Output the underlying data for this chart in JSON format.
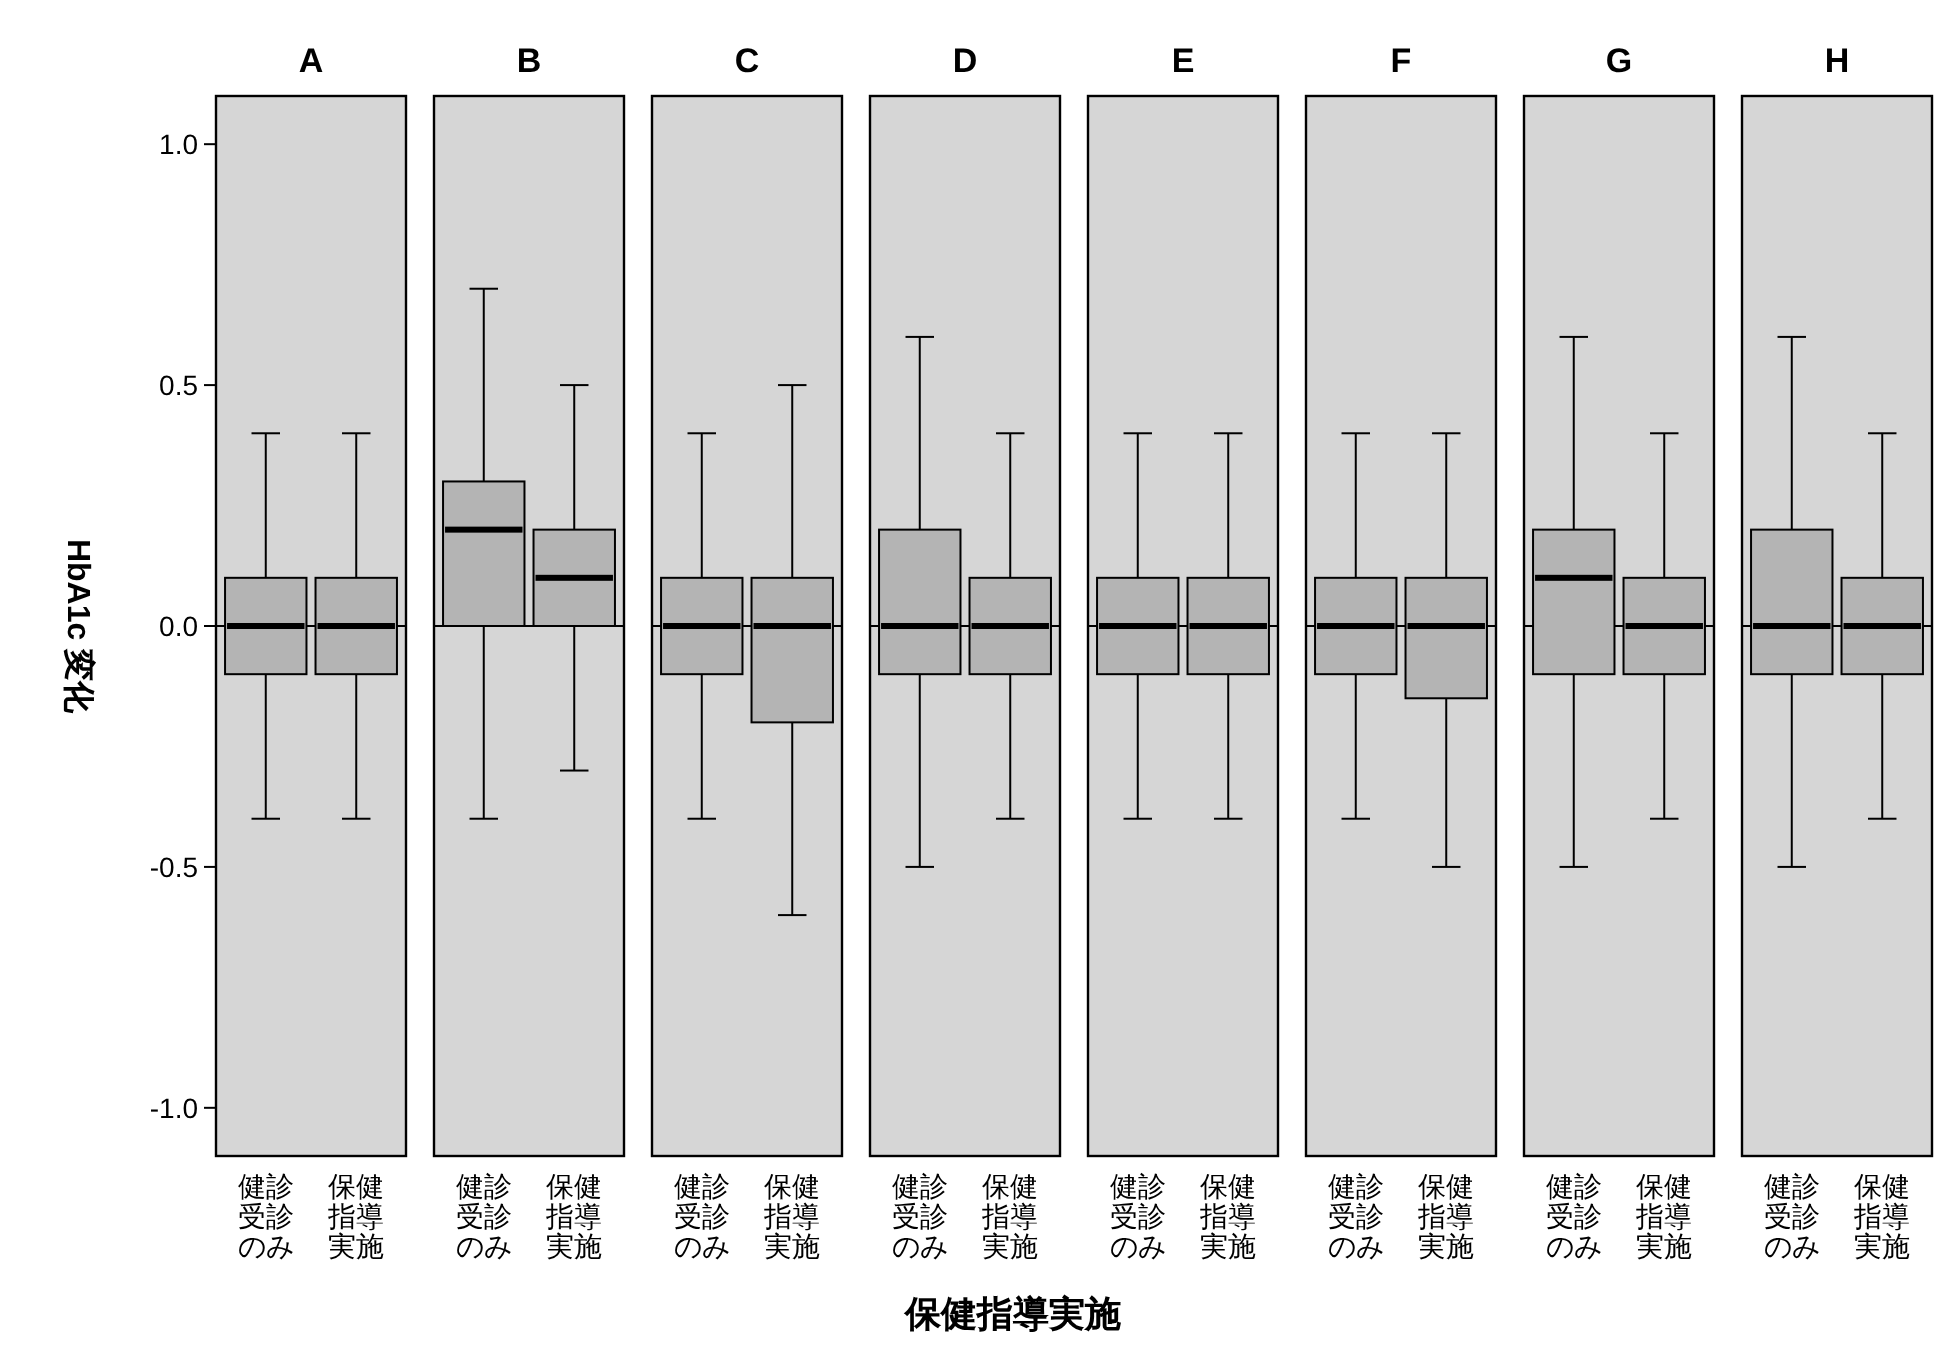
{
  "chart_data": [
    {
      "type": "box",
      "title": "A",
      "ylabel": "HbA1c 変化",
      "categories": [
        "健診受診のみ",
        "保健指導実施"
      ],
      "color": "#b4b4b4",
      "ylim": [
        -1.1,
        1.1
      ],
      "yticks": [
        {
          "value": -1,
          "label": "-1.0"
        },
        {
          "value": -0.5,
          "label": "-0.5"
        },
        {
          "value": 0,
          "label": "0.0"
        },
        {
          "value": 0.5,
          "label": "0.5"
        },
        {
          "value": 1,
          "label": "1.0"
        }
      ],
      "ref_lines": [
        {
          "axis": "y",
          "value": 0
        }
      ],
      "boxes": [
        {
          "low": -0.4,
          "q1": -0.1,
          "median": 0,
          "q3": 0.1,
          "high": 0.4
        },
        {
          "low": -0.4,
          "q1": -0.1,
          "median": 0,
          "q3": 0.1,
          "high": 0.4
        }
      ]
    },
    {
      "type": "box",
      "title": "B",
      "tick_labels": "x",
      "categories": [
        "健診受診のみ",
        "保健指導実施"
      ],
      "color": "#b4b4b4",
      "ylim": [
        -1.1,
        1.1
      ],
      "ref_lines": [
        {
          "axis": "y",
          "value": 0
        }
      ],
      "boxes": [
        {
          "low": -0.4,
          "q1": 0,
          "median": 0.2,
          "q3": 0.3,
          "high": 0.7
        },
        {
          "low": -0.3,
          "q1": 0,
          "median": 0.1,
          "q3": 0.2,
          "high": 0.5
        }
      ]
    },
    {
      "type": "box",
      "title": "C",
      "tick_labels": "x",
      "categories": [
        "健診受診のみ",
        "保健指導実施"
      ],
      "color": "#b4b4b4",
      "ylim": [
        -1.1,
        1.1
      ],
      "ref_lines": [
        {
          "axis": "y",
          "value": 0
        }
      ],
      "boxes": [
        {
          "low": -0.4,
          "q1": -0.1,
          "median": 0,
          "q3": 0.1,
          "high": 0.4
        },
        {
          "low": -0.6,
          "q1": -0.2,
          "median": 0,
          "q3": 0.1,
          "high": 0.5
        }
      ]
    },
    {
      "type": "box",
      "title": "D",
      "xlabel": "保健指導実施",
      "tick_labels": "x",
      "categories": [
        "健診受診のみ",
        "保健指導実施"
      ],
      "color": "#b4b4b4",
      "ylim": [
        -1.1,
        1.1
      ],
      "ref_lines": [
        {
          "axis": "y",
          "value": 0
        }
      ],
      "boxes": [
        {
          "low": -0.5,
          "q1": -0.1,
          "median": 0,
          "q3": 0.2,
          "high": 0.6
        },
        {
          "low": -0.4,
          "q1": -0.1,
          "median": 0,
          "q3": 0.1,
          "high": 0.4
        }
      ]
    },
    {
      "type": "box",
      "title": "E",
      "tick_labels": "x",
      "categories": [
        "健診受診のみ",
        "保健指導実施"
      ],
      "color": "#b4b4b4",
      "ylim": [
        -1.1,
        1.1
      ],
      "ref_lines": [
        {
          "axis": "y",
          "value": 0
        }
      ],
      "boxes": [
        {
          "low": -0.4,
          "q1": -0.1,
          "median": 0,
          "q3": 0.1,
          "high": 0.4
        },
        {
          "low": -0.4,
          "q1": -0.1,
          "median": 0,
          "q3": 0.1,
          "high": 0.4
        }
      ]
    },
    {
      "type": "box",
      "title": "F",
      "tick_labels": "x",
      "categories": [
        "健診受診のみ",
        "保健指導実施"
      ],
      "color": "#b4b4b4",
      "ylim": [
        -1.1,
        1.1
      ],
      "ref_lines": [
        {
          "axis": "y",
          "value": 0
        }
      ],
      "boxes": [
        {
          "low": -0.4,
          "q1": -0.1,
          "median": 0,
          "q3": 0.1,
          "high": 0.4
        },
        {
          "low": -0.5,
          "q1": -0.15,
          "median": 0,
          "q3": 0.1,
          "high": 0.4
        }
      ]
    },
    {
      "type": "box",
      "title": "G",
      "tick_labels": "x",
      "categories": [
        "健診受診のみ",
        "保健指導実施"
      ],
      "color": "#b4b4b4",
      "ylim": [
        -1.1,
        1.1
      ],
      "ref_lines": [
        {
          "axis": "y",
          "value": 0
        }
      ],
      "boxes": [
        {
          "low": -0.5,
          "q1": -0.1,
          "median": 0.1,
          "q3": 0.2,
          "high": 0.6
        },
        {
          "low": -0.4,
          "q1": -0.1,
          "median": 0,
          "q3": 0.1,
          "high": 0.4
        }
      ]
    },
    {
      "type": "box",
      "title": "H",
      "tick_labels": "x",
      "categories": [
        "健診受診のみ",
        "保健指導実施"
      ],
      "color": "#b4b4b4",
      "ylim": [
        -1.1,
        1.1
      ],
      "ref_lines": [
        {
          "axis": "y",
          "value": 0
        }
      ],
      "boxes": [
        {
          "low": -0.5,
          "q1": -0.1,
          "median": 0,
          "q3": 0.2,
          "high": 0.6
        },
        {
          "low": -0.4,
          "q1": -0.1,
          "median": 0,
          "q3": 0.1,
          "high": 0.4
        }
      ]
    }
  ]
}
